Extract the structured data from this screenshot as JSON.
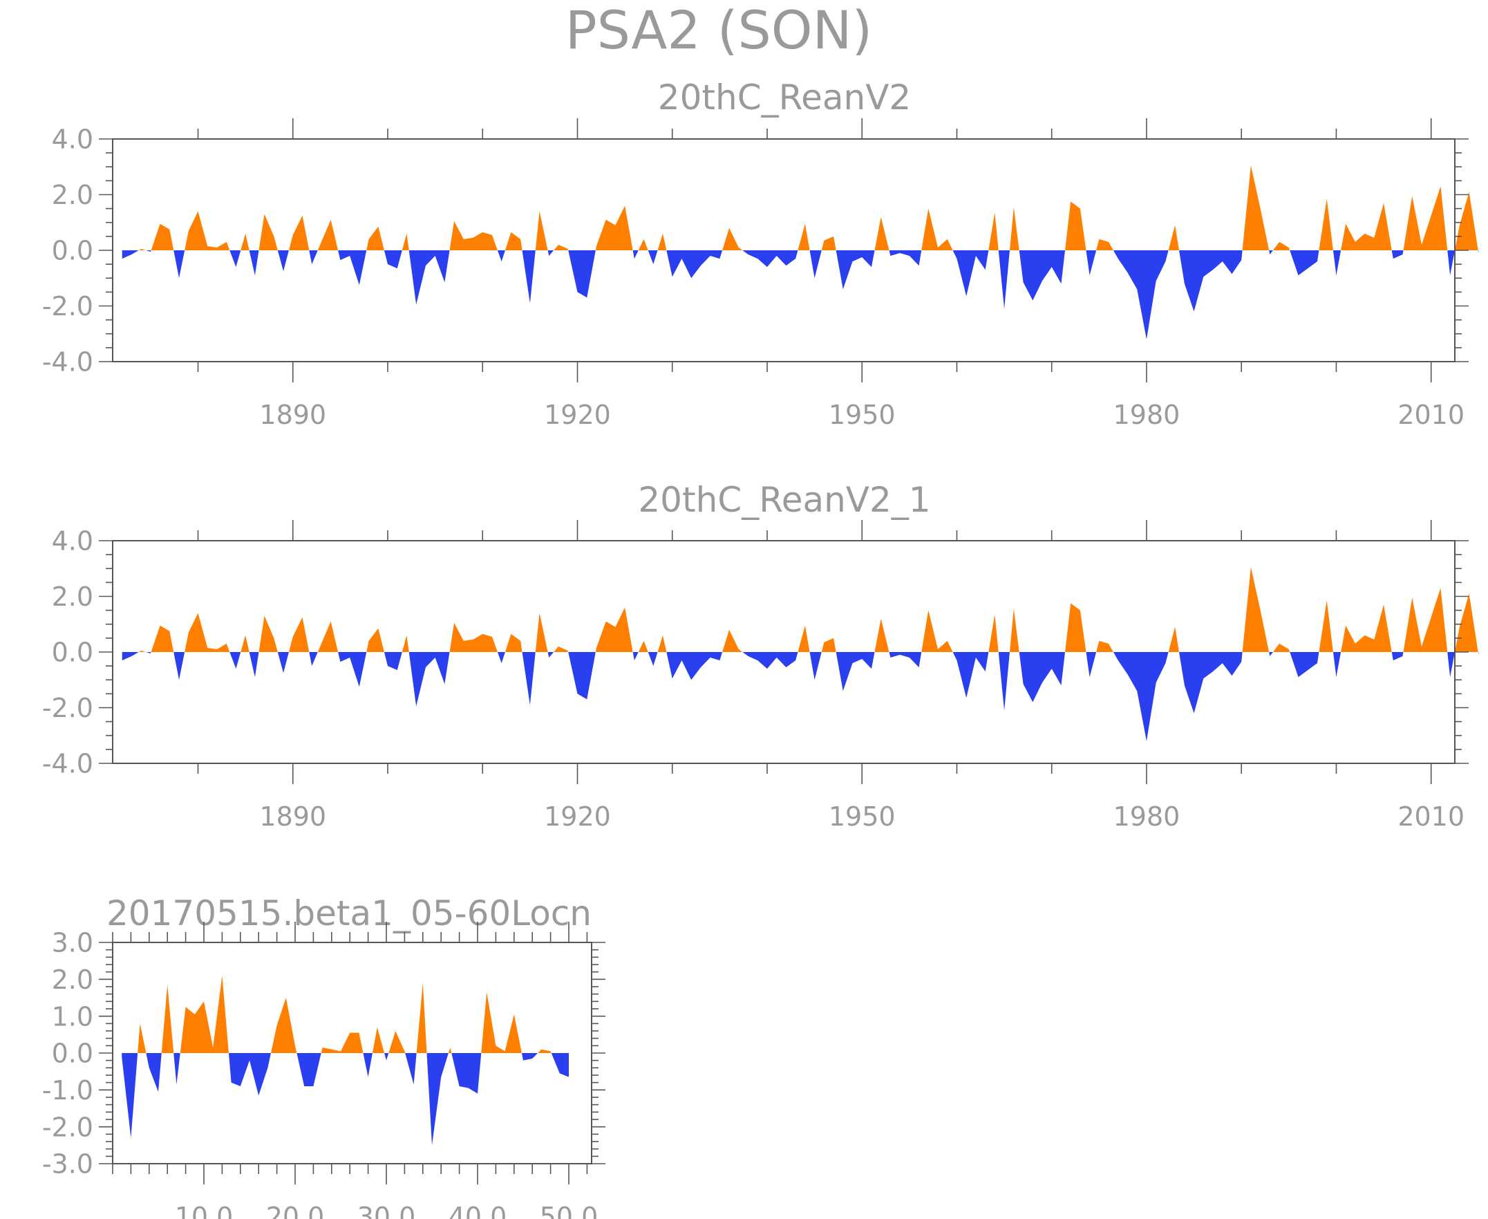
{
  "figure": {
    "title": "PSA2 (SON)"
  },
  "colors": {
    "positive": "#ff8000",
    "negative": "#2a3ff0",
    "axis": "#555555",
    "text": "#9a9a9a"
  },
  "chart_data": [
    {
      "type": "area",
      "title": "20thC_ReanV2",
      "xlabel": "",
      "ylabel": "",
      "xlim": [
        1871,
        2012.5
      ],
      "ylim": [
        -4.0,
        4.0
      ],
      "yticks": [
        -4.0,
        -2.0,
        0.0,
        2.0,
        4.0
      ],
      "ytick_labels": [
        "-4.0",
        "-2.0",
        "0.0",
        "2.0",
        "4.0"
      ],
      "xticks": [
        1890,
        1920,
        1950,
        1980,
        2010
      ],
      "xtick_labels": [
        "1890",
        "1920",
        "1950",
        "1980",
        "2010"
      ],
      "x_start": 1872,
      "values": [
        -0.3,
        -0.15,
        0.05,
        -0.05,
        0.95,
        0.75,
        -1.0,
        0.7,
        1.4,
        0.15,
        0.1,
        0.3,
        -0.6,
        0.6,
        -0.9,
        1.3,
        0.5,
        -0.75,
        0.55,
        1.25,
        -0.5,
        0.3,
        1.1,
        -0.35,
        -0.2,
        -1.25,
        0.4,
        0.85,
        -0.5,
        -0.65,
        0.6,
        -1.95,
        -0.55,
        -0.2,
        -1.15,
        1.05,
        0.4,
        0.45,
        0.65,
        0.55,
        -0.4,
        0.65,
        0.4,
        -1.9,
        1.4,
        -0.2,
        0.2,
        0.05,
        -1.5,
        -1.7,
        0.15,
        1.1,
        0.9,
        1.6,
        -0.3,
        0.4,
        -0.5,
        0.6,
        -0.95,
        -0.3,
        -1.0,
        -0.55,
        -0.2,
        -0.3,
        0.8,
        0.1,
        -0.15,
        -0.3,
        -0.6,
        -0.2,
        -0.55,
        -0.3,
        0.95,
        -1.0,
        0.35,
        0.5,
        -1.4,
        -0.4,
        -0.25,
        -0.6,
        1.2,
        -0.2,
        -0.1,
        -0.2,
        -0.55,
        1.5,
        0.1,
        0.4,
        -0.3,
        -1.65,
        -0.2,
        -0.7,
        1.35,
        -2.1,
        1.55,
        -1.15,
        -1.8,
        -1.1,
        -0.6,
        -1.2,
        1.75,
        1.5,
        -0.9,
        0.4,
        0.3,
        -0.3,
        -0.8,
        -1.4,
        -3.2,
        -1.1,
        -0.4,
        0.9,
        -1.2,
        -2.2,
        -0.95,
        -0.7,
        -0.4,
        -0.85,
        -0.35,
        3.05,
        1.5,
        -0.15,
        0.3,
        0.1,
        -0.9,
        -0.65,
        -0.4,
        1.85,
        -0.9,
        0.95,
        0.3,
        0.6,
        0.45,
        1.7,
        -0.3,
        -0.15,
        1.95,
        0.2,
        1.25,
        2.3,
        -0.9,
        0.9,
        2.1,
        -0.1
      ]
    },
    {
      "type": "area",
      "title": "20thC_ReanV2_1",
      "xlabel": "",
      "ylabel": "",
      "xlim": [
        1871,
        2012.5
      ],
      "ylim": [
        -4.0,
        4.0
      ],
      "yticks": [
        -4.0,
        -2.0,
        0.0,
        2.0,
        4.0
      ],
      "ytick_labels": [
        "-4.0",
        "-2.0",
        "0.0",
        "2.0",
        "4.0"
      ],
      "xticks": [
        1890,
        1920,
        1950,
        1980,
        2010
      ],
      "xtick_labels": [
        "1890",
        "1920",
        "1950",
        "1980",
        "2010"
      ],
      "x_start": 1872,
      "values": [
        -0.3,
        -0.15,
        0.05,
        -0.05,
        0.95,
        0.75,
        -1.0,
        0.7,
        1.4,
        0.15,
        0.1,
        0.3,
        -0.6,
        0.6,
        -0.9,
        1.3,
        0.5,
        -0.75,
        0.55,
        1.25,
        -0.5,
        0.3,
        1.1,
        -0.35,
        -0.2,
        -1.25,
        0.4,
        0.85,
        -0.5,
        -0.65,
        0.6,
        -1.95,
        -0.55,
        -0.2,
        -1.15,
        1.05,
        0.4,
        0.45,
        0.65,
        0.55,
        -0.4,
        0.65,
        0.4,
        -1.9,
        1.4,
        -0.2,
        0.2,
        0.05,
        -1.5,
        -1.7,
        0.15,
        1.1,
        0.9,
        1.6,
        -0.3,
        0.4,
        -0.5,
        0.6,
        -0.95,
        -0.3,
        -1.0,
        -0.55,
        -0.2,
        -0.3,
        0.8,
        0.1,
        -0.15,
        -0.3,
        -0.6,
        -0.2,
        -0.55,
        -0.3,
        0.95,
        -1.0,
        0.35,
        0.5,
        -1.4,
        -0.4,
        -0.25,
        -0.6,
        1.2,
        -0.2,
        -0.1,
        -0.2,
        -0.55,
        1.5,
        0.1,
        0.4,
        -0.3,
        -1.65,
        -0.2,
        -0.7,
        1.35,
        -2.1,
        1.55,
        -1.15,
        -1.8,
        -1.1,
        -0.6,
        -1.2,
        1.75,
        1.5,
        -0.9,
        0.4,
        0.3,
        -0.3,
        -0.8,
        -1.4,
        -3.2,
        -1.1,
        -0.4,
        0.9,
        -1.2,
        -2.2,
        -0.95,
        -0.7,
        -0.4,
        -0.85,
        -0.35,
        3.05,
        1.5,
        -0.15,
        0.3,
        0.1,
        -0.9,
        -0.65,
        -0.4,
        1.85,
        -0.9,
        0.95,
        0.3,
        0.6,
        0.45,
        1.7,
        -0.3,
        -0.15,
        1.95,
        0.2,
        1.25,
        2.3,
        -0.9,
        0.9,
        2.1,
        -0.1
      ]
    },
    {
      "type": "area",
      "title": "20170515.beta1_05-60Locn",
      "xlabel": "",
      "ylabel": "",
      "xlim": [
        0,
        52.5
      ],
      "ylim": [
        -3.0,
        3.0
      ],
      "yticks": [
        -3.0,
        -2.0,
        -1.0,
        0.0,
        1.0,
        2.0,
        3.0
      ],
      "ytick_labels": [
        "-3.0",
        "-2.0",
        "-1.0",
        "0.0",
        "1.0",
        "2.0",
        "3.0"
      ],
      "xticks": [
        10,
        20,
        30,
        40,
        50
      ],
      "xtick_labels": [
        "10.0",
        "20.0",
        "30.0",
        "40.0",
        "50.0"
      ],
      "x_start": 1,
      "values": [
        -0.1,
        -2.3,
        0.8,
        -0.4,
        -1.05,
        1.85,
        -0.85,
        1.25,
        1.05,
        1.4,
        0.15,
        2.1,
        -0.8,
        -0.9,
        -0.2,
        -1.15,
        -0.4,
        0.75,
        1.5,
        0.2,
        -0.9,
        -0.9,
        0.15,
        0.1,
        0.05,
        0.55,
        0.55,
        -0.65,
        0.7,
        -0.2,
        0.6,
        0.05,
        -0.85,
        1.9,
        -2.5,
        -0.65,
        0.15,
        -0.9,
        -0.95,
        -1.1,
        1.65,
        0.2,
        0.05,
        1.05,
        -0.2,
        -0.15,
        0.1,
        0.05,
        -0.55,
        -0.65
      ]
    }
  ]
}
